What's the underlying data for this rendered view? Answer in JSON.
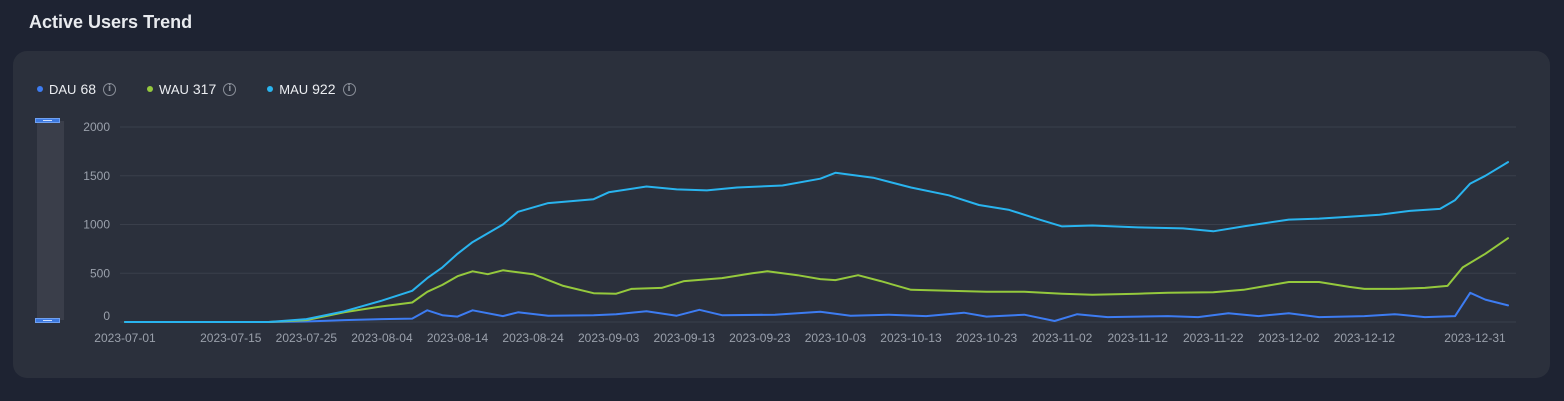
{
  "title": "Active Users Trend",
  "legend": [
    {
      "name": "DAU",
      "value": "68",
      "color": "#3d7cf2"
    },
    {
      "name": "WAU",
      "value": "317",
      "color": "#95c93d"
    },
    {
      "name": "MAU",
      "value": "922",
      "color": "#29b4ef"
    }
  ],
  "chart_data": {
    "type": "line",
    "title": "Active Users Trend",
    "x_start": "2023-07-01",
    "x_end": "2023-12-31",
    "xticks": [
      "2023-07-01",
      "2023-07-15",
      "2023-07-25",
      "2023-08-04",
      "2023-08-14",
      "2023-08-24",
      "2023-09-03",
      "2023-09-13",
      "2023-09-23",
      "2023-10-03",
      "2023-10-13",
      "2023-10-23",
      "2023-11-02",
      "2023-11-12",
      "2023-11-22",
      "2023-12-02",
      "2023-12-12",
      "2023-12-31"
    ],
    "yticks": [
      0,
      500,
      1000,
      1500,
      2000
    ],
    "ylim": [
      0,
      2000
    ],
    "grid": true,
    "legend_position": "top-left",
    "series": [
      {
        "name": "DAU",
        "color": "#3d7cf2",
        "points": [
          [
            "2023-07-01",
            0
          ],
          [
            "2023-07-15",
            0
          ],
          [
            "2023-07-20",
            0
          ],
          [
            "2023-07-25",
            5
          ],
          [
            "2023-07-30",
            20
          ],
          [
            "2023-08-04",
            30
          ],
          [
            "2023-08-08",
            35
          ],
          [
            "2023-08-10",
            120
          ],
          [
            "2023-08-12",
            70
          ],
          [
            "2023-08-14",
            55
          ],
          [
            "2023-08-16",
            120
          ],
          [
            "2023-08-20",
            60
          ],
          [
            "2023-08-22",
            100
          ],
          [
            "2023-08-26",
            65
          ],
          [
            "2023-09-01",
            70
          ],
          [
            "2023-09-04",
            80
          ],
          [
            "2023-09-08",
            110
          ],
          [
            "2023-09-12",
            65
          ],
          [
            "2023-09-15",
            125
          ],
          [
            "2023-09-18",
            70
          ],
          [
            "2023-09-25",
            75
          ],
          [
            "2023-10-01",
            105
          ],
          [
            "2023-10-05",
            65
          ],
          [
            "2023-10-10",
            75
          ],
          [
            "2023-10-15",
            60
          ],
          [
            "2023-10-20",
            95
          ],
          [
            "2023-10-23",
            55
          ],
          [
            "2023-10-28",
            75
          ],
          [
            "2023-11-01",
            10
          ],
          [
            "2023-11-04",
            80
          ],
          [
            "2023-11-08",
            50
          ],
          [
            "2023-11-12",
            55
          ],
          [
            "2023-11-16",
            60
          ],
          [
            "2023-11-20",
            50
          ],
          [
            "2023-11-24",
            90
          ],
          [
            "2023-11-28",
            60
          ],
          [
            "2023-12-02",
            90
          ],
          [
            "2023-12-06",
            50
          ],
          [
            "2023-12-12",
            60
          ],
          [
            "2023-12-16",
            80
          ],
          [
            "2023-12-20",
            50
          ],
          [
            "2023-12-24",
            60
          ],
          [
            "2023-12-26",
            300
          ],
          [
            "2023-12-28",
            230
          ],
          [
            "2023-12-31",
            170
          ]
        ]
      },
      {
        "name": "WAU",
        "color": "#95c93d",
        "points": [
          [
            "2023-07-01",
            0
          ],
          [
            "2023-07-15",
            0
          ],
          [
            "2023-07-20",
            0
          ],
          [
            "2023-07-25",
            20
          ],
          [
            "2023-07-30",
            100
          ],
          [
            "2023-08-04",
            160
          ],
          [
            "2023-08-08",
            200
          ],
          [
            "2023-08-10",
            310
          ],
          [
            "2023-08-12",
            380
          ],
          [
            "2023-08-14",
            470
          ],
          [
            "2023-08-16",
            520
          ],
          [
            "2023-08-18",
            490
          ],
          [
            "2023-08-20",
            530
          ],
          [
            "2023-08-24",
            490
          ],
          [
            "2023-08-28",
            370
          ],
          [
            "2023-09-01",
            295
          ],
          [
            "2023-09-04",
            290
          ],
          [
            "2023-09-06",
            340
          ],
          [
            "2023-09-10",
            350
          ],
          [
            "2023-09-13",
            420
          ],
          [
            "2023-09-18",
            450
          ],
          [
            "2023-09-22",
            500
          ],
          [
            "2023-09-24",
            520
          ],
          [
            "2023-09-28",
            480
          ],
          [
            "2023-10-01",
            440
          ],
          [
            "2023-10-03",
            430
          ],
          [
            "2023-10-06",
            480
          ],
          [
            "2023-10-09",
            420
          ],
          [
            "2023-10-13",
            330
          ],
          [
            "2023-10-18",
            320
          ],
          [
            "2023-10-23",
            310
          ],
          [
            "2023-10-28",
            310
          ],
          [
            "2023-11-02",
            290
          ],
          [
            "2023-11-06",
            280
          ],
          [
            "2023-11-12",
            290
          ],
          [
            "2023-11-16",
            300
          ],
          [
            "2023-11-22",
            305
          ],
          [
            "2023-11-26",
            330
          ],
          [
            "2023-12-02",
            410
          ],
          [
            "2023-12-06",
            410
          ],
          [
            "2023-12-10",
            360
          ],
          [
            "2023-12-12",
            340
          ],
          [
            "2023-12-16",
            340
          ],
          [
            "2023-12-20",
            350
          ],
          [
            "2023-12-23",
            370
          ],
          [
            "2023-12-25",
            560
          ],
          [
            "2023-12-28",
            700
          ],
          [
            "2023-12-31",
            860
          ]
        ]
      },
      {
        "name": "MAU",
        "color": "#29b4ef",
        "points": [
          [
            "2023-07-01",
            0
          ],
          [
            "2023-07-15",
            0
          ],
          [
            "2023-07-20",
            0
          ],
          [
            "2023-07-25",
            30
          ],
          [
            "2023-07-30",
            110
          ],
          [
            "2023-08-04",
            220
          ],
          [
            "2023-08-08",
            320
          ],
          [
            "2023-08-10",
            450
          ],
          [
            "2023-08-12",
            560
          ],
          [
            "2023-08-14",
            700
          ],
          [
            "2023-08-16",
            820
          ],
          [
            "2023-08-20",
            1000
          ],
          [
            "2023-08-22",
            1130
          ],
          [
            "2023-08-26",
            1220
          ],
          [
            "2023-09-01",
            1260
          ],
          [
            "2023-09-03",
            1330
          ],
          [
            "2023-09-08",
            1390
          ],
          [
            "2023-09-12",
            1360
          ],
          [
            "2023-09-16",
            1350
          ],
          [
            "2023-09-20",
            1380
          ],
          [
            "2023-09-26",
            1400
          ],
          [
            "2023-10-01",
            1470
          ],
          [
            "2023-10-03",
            1530
          ],
          [
            "2023-10-08",
            1480
          ],
          [
            "2023-10-13",
            1380
          ],
          [
            "2023-10-18",
            1300
          ],
          [
            "2023-10-22",
            1200
          ],
          [
            "2023-10-26",
            1150
          ],
          [
            "2023-10-30",
            1050
          ],
          [
            "2023-11-02",
            980
          ],
          [
            "2023-11-06",
            990
          ],
          [
            "2023-11-12",
            970
          ],
          [
            "2023-11-18",
            960
          ],
          [
            "2023-11-22",
            930
          ],
          [
            "2023-11-26",
            980
          ],
          [
            "2023-12-02",
            1050
          ],
          [
            "2023-12-06",
            1060
          ],
          [
            "2023-12-10",
            1080
          ],
          [
            "2023-12-14",
            1100
          ],
          [
            "2023-12-18",
            1140
          ],
          [
            "2023-12-22",
            1160
          ],
          [
            "2023-12-24",
            1250
          ],
          [
            "2023-12-26",
            1420
          ],
          [
            "2023-12-28",
            1500
          ],
          [
            "2023-12-31",
            1640
          ]
        ]
      }
    ]
  }
}
